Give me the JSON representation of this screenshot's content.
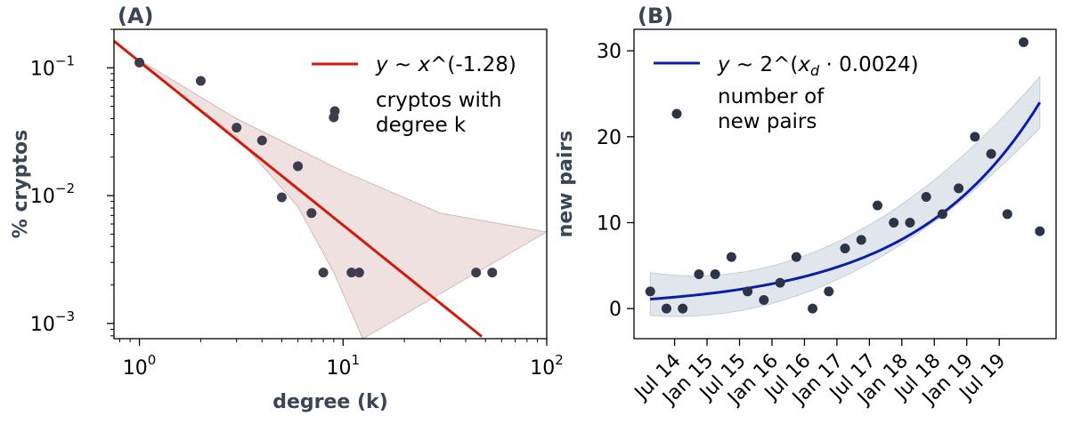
{
  "chart_data": [
    {
      "panel": "(A)",
      "type": "scatter",
      "xlabel": "degree (k)",
      "ylabel": "% cryptos",
      "xscale": "log",
      "yscale": "log",
      "xlim": [
        0.75,
        100
      ],
      "ylim": [
        0.00076,
        0.2
      ],
      "xticks": [
        1,
        10,
        100
      ],
      "xtick_labels": [
        {
          "base": "10",
          "exp": "0"
        },
        {
          "base": "10",
          "exp": "1"
        },
        {
          "base": "10",
          "exp": "2"
        }
      ],
      "yticks": [
        0.001,
        0.01,
        0.1
      ],
      "ytick_labels": [
        {
          "base": "10",
          "exp": "−3"
        },
        {
          "base": "10",
          "exp": "−2"
        },
        {
          "base": "10",
          "exp": "−1"
        }
      ],
      "points": {
        "name": "cryptos with degree k",
        "x": [
          1,
          2,
          3,
          4,
          5,
          6,
          7,
          8,
          9,
          11,
          12,
          45,
          54
        ],
        "y": [
          0.11,
          0.079,
          0.034,
          0.027,
          0.0097,
          0.017,
          0.0073,
          0.0025,
          0.041,
          0.0025,
          0.0025,
          0.0025,
          0.0025
        ],
        "color": "#3d3d4d"
      },
      "fit": {
        "name": "y ~ x^(-1.28)",
        "coef": 0.112,
        "exponent": -1.28,
        "color": "#d11a0d"
      },
      "band": {
        "color": "#b07870",
        "upper": {
          "x": [
            1,
            3,
            10,
            30,
            100
          ],
          "y": [
            0.115,
            0.04,
            0.0155,
            0.0073,
            0.0052
          ]
        },
        "lower": {
          "x": [
            1,
            3,
            6,
            9,
            12.5
          ],
          "y": [
            0.108,
            0.029,
            0.0082,
            0.0025,
            0.00076
          ]
        }
      },
      "legend": {
        "position": "top-right",
        "line_label": {
          "lhs": "y",
          "tilde": " ~ ",
          "var": "x",
          "rest": "^(-1.28)"
        },
        "marker_label": [
          "cryptos with",
          "degree k"
        ]
      }
    },
    {
      "panel": "(B)",
      "type": "scatter",
      "xlabel": "",
      "ylabel": "new pairs",
      "xlim": [
        0,
        26
      ],
      "ylim": [
        -3.5,
        32.5
      ],
      "yticks": [
        0,
        10,
        20,
        30
      ],
      "xticks": [
        {
          "x": 2.5,
          "label": "Jul 14"
        },
        {
          "x": 4.5,
          "label": "Jan 15"
        },
        {
          "x": 6.5,
          "label": "Jul 15"
        },
        {
          "x": 8.5,
          "label": "Jan 16"
        },
        {
          "x": 10.5,
          "label": "Jul 16"
        },
        {
          "x": 12.5,
          "label": "Jan 17"
        },
        {
          "x": 14.5,
          "label": "Jul 17"
        },
        {
          "x": 16.5,
          "label": "Jan 18"
        },
        {
          "x": 18.5,
          "label": "Jul 18"
        },
        {
          "x": 20.5,
          "label": "Jan 19"
        },
        {
          "x": 22.5,
          "label": "Jul 19"
        }
      ],
      "points": {
        "name": "number of new pairs",
        "x": [
          1,
          2,
          3,
          4,
          5,
          6,
          7,
          8,
          9,
          10,
          11,
          12,
          13,
          14,
          15,
          16,
          17,
          18,
          19,
          20,
          21,
          22,
          23,
          24,
          25
        ],
        "y": [
          2,
          0,
          0,
          4,
          4,
          6,
          2,
          1,
          3,
          6,
          0,
          2,
          7,
          8,
          12,
          10,
          10,
          13,
          11,
          14,
          20,
          18,
          11,
          31,
          9
        ],
        "color": "#2c3547"
      },
      "fit": {
        "name": "y ~ 2^(x_d · 0.0024)",
        "x_start": 1,
        "x_end": 25,
        "y_start": 1.1,
        "y_end": 24,
        "color": "#0a1fa8"
      },
      "band": {
        "color": "#c8d2dc",
        "upper": {
          "x": [
            1,
            13,
            25
          ],
          "y": [
            4.2,
            8.2,
            27
          ]
        },
        "lower": {
          "x": [
            1,
            13,
            25
          ],
          "y": [
            -0.8,
            3.8,
            21
          ]
        }
      },
      "legend": {
        "position": "top-left",
        "line_label": {
          "lhs": "y",
          "tilde": " ~ 2^(",
          "var": "x",
          "sub": "d",
          "rest": " · 0.0024)"
        },
        "marker_label": [
          "number of",
          "new pairs"
        ]
      }
    }
  ]
}
